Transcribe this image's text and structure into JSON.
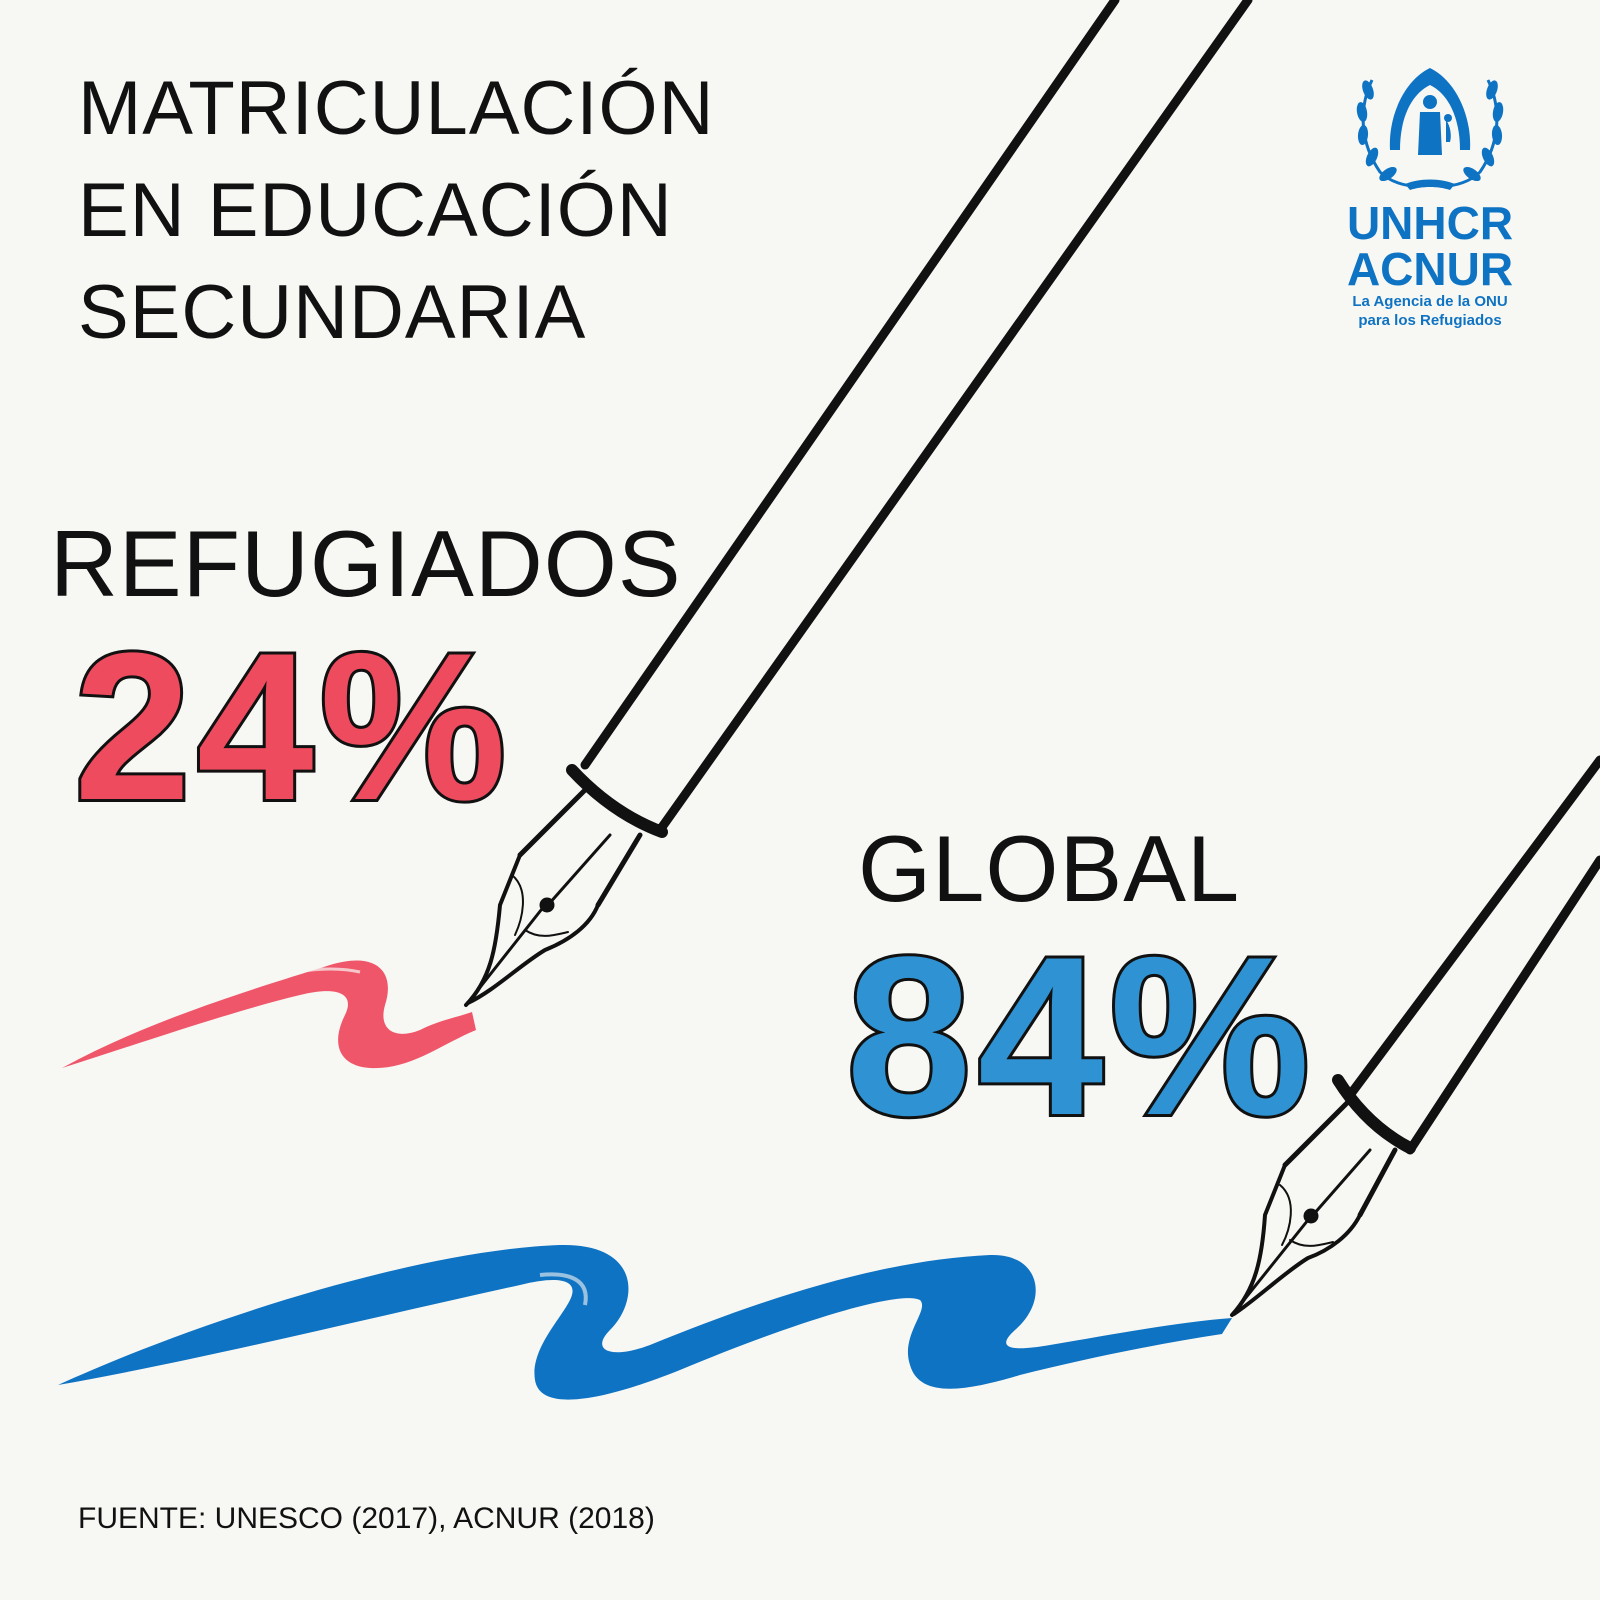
{
  "title": {
    "line1": "MATRICULACIÓN",
    "line2": "EN EDUCACIÓN",
    "line3": "SECUNDARIA"
  },
  "refugees": {
    "label": "REFUGIADOS",
    "percent": "24%",
    "color": "#ef4b5f"
  },
  "global": {
    "label": "GLOBAL",
    "percent": "84%",
    "color": "#2f93d3"
  },
  "source": "FUENTE: UNESCO (2017), ACNUR (2018)",
  "logo": {
    "line1": "UNHCR",
    "line2": "ACNUR",
    "sub1": "La Agencia de la ONU",
    "sub2": "para los Refugiados",
    "color": "#0f73c3",
    "icon": "unhcr-emblem-icon"
  },
  "strokes": {
    "pink_color": "#f0566a",
    "blue_color": "#0f73c3",
    "icon": "fountain-pen-icon"
  }
}
